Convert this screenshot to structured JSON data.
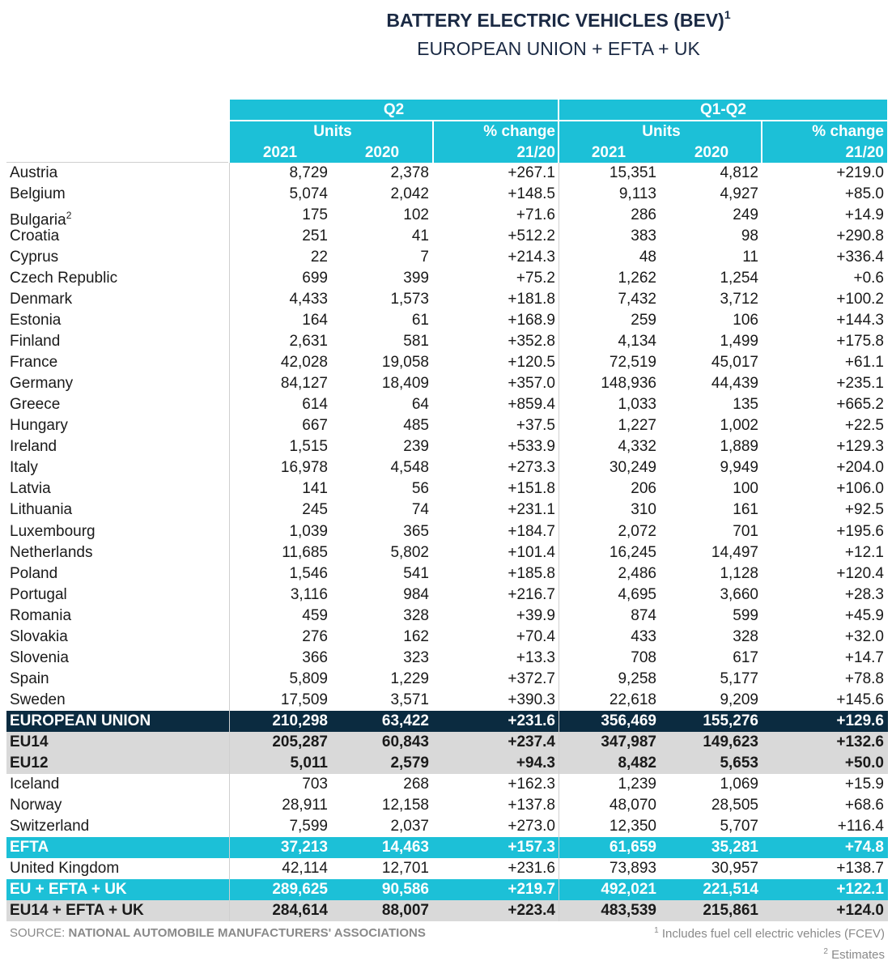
{
  "header": {
    "title": "BATTERY ELECTRIC VEHICLES (BEV)",
    "title_note": "1",
    "subtitle": "EUROPEAN UNION + EFTA + UK"
  },
  "table": {
    "header_color": "#1cc0d7",
    "groups": [
      {
        "label": "Q2",
        "units": "Units",
        "years": [
          "2021",
          "2020"
        ],
        "change": "% change",
        "change_period": "21/20"
      },
      {
        "label": "Q1-Q2",
        "units": "Units",
        "years": [
          "2021",
          "2020"
        ],
        "change": "% change",
        "change_period": "21/20"
      }
    ],
    "rows": [
      {
        "label": "Austria",
        "cells": [
          "8,729",
          "2,378",
          "+267.1",
          "15,351",
          "4,812",
          "+219.0"
        ]
      },
      {
        "label": "Belgium",
        "cells": [
          "5,074",
          "2,042",
          "+148.5",
          "9,113",
          "4,927",
          "+85.0"
        ]
      },
      {
        "label": "Bulgaria",
        "note": "2",
        "cells": [
          "175",
          "102",
          "+71.6",
          "286",
          "249",
          "+14.9"
        ]
      },
      {
        "label": "Croatia",
        "cells": [
          "251",
          "41",
          "+512.2",
          "383",
          "98",
          "+290.8"
        ]
      },
      {
        "label": "Cyprus",
        "cells": [
          "22",
          "7",
          "+214.3",
          "48",
          "11",
          "+336.4"
        ]
      },
      {
        "label": "Czech Republic",
        "cells": [
          "699",
          "399",
          "+75.2",
          "1,262",
          "1,254",
          "+0.6"
        ]
      },
      {
        "label": "Denmark",
        "cells": [
          "4,433",
          "1,573",
          "+181.8",
          "7,432",
          "3,712",
          "+100.2"
        ]
      },
      {
        "label": "Estonia",
        "cells": [
          "164",
          "61",
          "+168.9",
          "259",
          "106",
          "+144.3"
        ]
      },
      {
        "label": "Finland",
        "cells": [
          "2,631",
          "581",
          "+352.8",
          "4,134",
          "1,499",
          "+175.8"
        ]
      },
      {
        "label": "France",
        "cells": [
          "42,028",
          "19,058",
          "+120.5",
          "72,519",
          "45,017",
          "+61.1"
        ]
      },
      {
        "label": "Germany",
        "cells": [
          "84,127",
          "18,409",
          "+357.0",
          "148,936",
          "44,439",
          "+235.1"
        ]
      },
      {
        "label": "Greece",
        "cells": [
          "614",
          "64",
          "+859.4",
          "1,033",
          "135",
          "+665.2"
        ]
      },
      {
        "label": "Hungary",
        "cells": [
          "667",
          "485",
          "+37.5",
          "1,227",
          "1,002",
          "+22.5"
        ]
      },
      {
        "label": "Ireland",
        "cells": [
          "1,515",
          "239",
          "+533.9",
          "4,332",
          "1,889",
          "+129.3"
        ]
      },
      {
        "label": "Italy",
        "cells": [
          "16,978",
          "4,548",
          "+273.3",
          "30,249",
          "9,949",
          "+204.0"
        ]
      },
      {
        "label": "Latvia",
        "cells": [
          "141",
          "56",
          "+151.8",
          "206",
          "100",
          "+106.0"
        ]
      },
      {
        "label": "Lithuania",
        "cells": [
          "245",
          "74",
          "+231.1",
          "310",
          "161",
          "+92.5"
        ]
      },
      {
        "label": "Luxembourg",
        "cells": [
          "1,039",
          "365",
          "+184.7",
          "2,072",
          "701",
          "+195.6"
        ]
      },
      {
        "label": "Netherlands",
        "cells": [
          "11,685",
          "5,802",
          "+101.4",
          "16,245",
          "14,497",
          "+12.1"
        ]
      },
      {
        "label": "Poland",
        "cells": [
          "1,546",
          "541",
          "+185.8",
          "2,486",
          "1,128",
          "+120.4"
        ]
      },
      {
        "label": "Portugal",
        "cells": [
          "3,116",
          "984",
          "+216.7",
          "4,695",
          "3,660",
          "+28.3"
        ]
      },
      {
        "label": "Romania",
        "cells": [
          "459",
          "328",
          "+39.9",
          "874",
          "599",
          "+45.9"
        ]
      },
      {
        "label": "Slovakia",
        "cells": [
          "276",
          "162",
          "+70.4",
          "433",
          "328",
          "+32.0"
        ]
      },
      {
        "label": "Slovenia",
        "cells": [
          "366",
          "323",
          "+13.3",
          "708",
          "617",
          "+14.7"
        ]
      },
      {
        "label": "Spain",
        "cells": [
          "5,809",
          "1,229",
          "+372.7",
          "9,258",
          "5,177",
          "+78.8"
        ]
      },
      {
        "label": "Sweden",
        "cells": [
          "17,509",
          "3,571",
          "+390.3",
          "22,618",
          "9,209",
          "+145.6"
        ]
      },
      {
        "label": "EUROPEAN UNION",
        "fill": "#0b2b40",
        "text_color": "#ffffff",
        "cells": [
          "210,298",
          "63,422",
          "+231.6",
          "356,469",
          "155,276",
          "+129.6"
        ]
      },
      {
        "label": "EU14",
        "fill": "#d9d9d9",
        "text_color": "#1a1a1a",
        "cells": [
          "205,287",
          "60,843",
          "+237.4",
          "347,987",
          "149,623",
          "+132.6"
        ]
      },
      {
        "label": "EU12",
        "fill": "#d9d9d9",
        "text_color": "#1a1a1a",
        "cells": [
          "5,011",
          "2,579",
          "+94.3",
          "8,482",
          "5,653",
          "+50.0"
        ]
      },
      {
        "label": "Iceland",
        "cells": [
          "703",
          "268",
          "+162.3",
          "1,239",
          "1,069",
          "+15.9"
        ]
      },
      {
        "label": "Norway",
        "cells": [
          "28,911",
          "12,158",
          "+137.8",
          "48,070",
          "28,505",
          "+68.6"
        ]
      },
      {
        "label": "Switzerland",
        "cells": [
          "7,599",
          "2,037",
          "+273.0",
          "12,350",
          "5,707",
          "+116.4"
        ]
      },
      {
        "label": "EFTA",
        "fill": "#1cc0d7",
        "text_color": "#ffffff",
        "cells": [
          "37,213",
          "14,463",
          "+157.3",
          "61,659",
          "35,281",
          "+74.8"
        ]
      },
      {
        "label": "United Kingdom",
        "cells": [
          "42,114",
          "12,701",
          "+231.6",
          "73,893",
          "30,957",
          "+138.7"
        ]
      },
      {
        "label": "EU + EFTA + UK",
        "fill": "#1cc0d7",
        "text_color": "#ffffff",
        "cells": [
          "289,625",
          "90,586",
          "+219.7",
          "492,021",
          "221,514",
          "+122.1"
        ]
      },
      {
        "label": "EU14 + EFTA + UK",
        "fill": "#d9d9d9",
        "text_color": "#1a1a1a",
        "cells": [
          "284,614",
          "88,007",
          "+223.4",
          "483,539",
          "215,861",
          "+124.0"
        ]
      }
    ]
  },
  "footer": {
    "source_label": "SOURCE:",
    "source": "NATIONAL AUTOMOBILE MANUFACTURERS' ASSOCIATIONS",
    "footnotes": [
      {
        "mark": "1",
        "text": "Includes fuel cell electric vehicles (FCEV)"
      },
      {
        "mark": "2",
        "text": "Estimates"
      }
    ]
  }
}
